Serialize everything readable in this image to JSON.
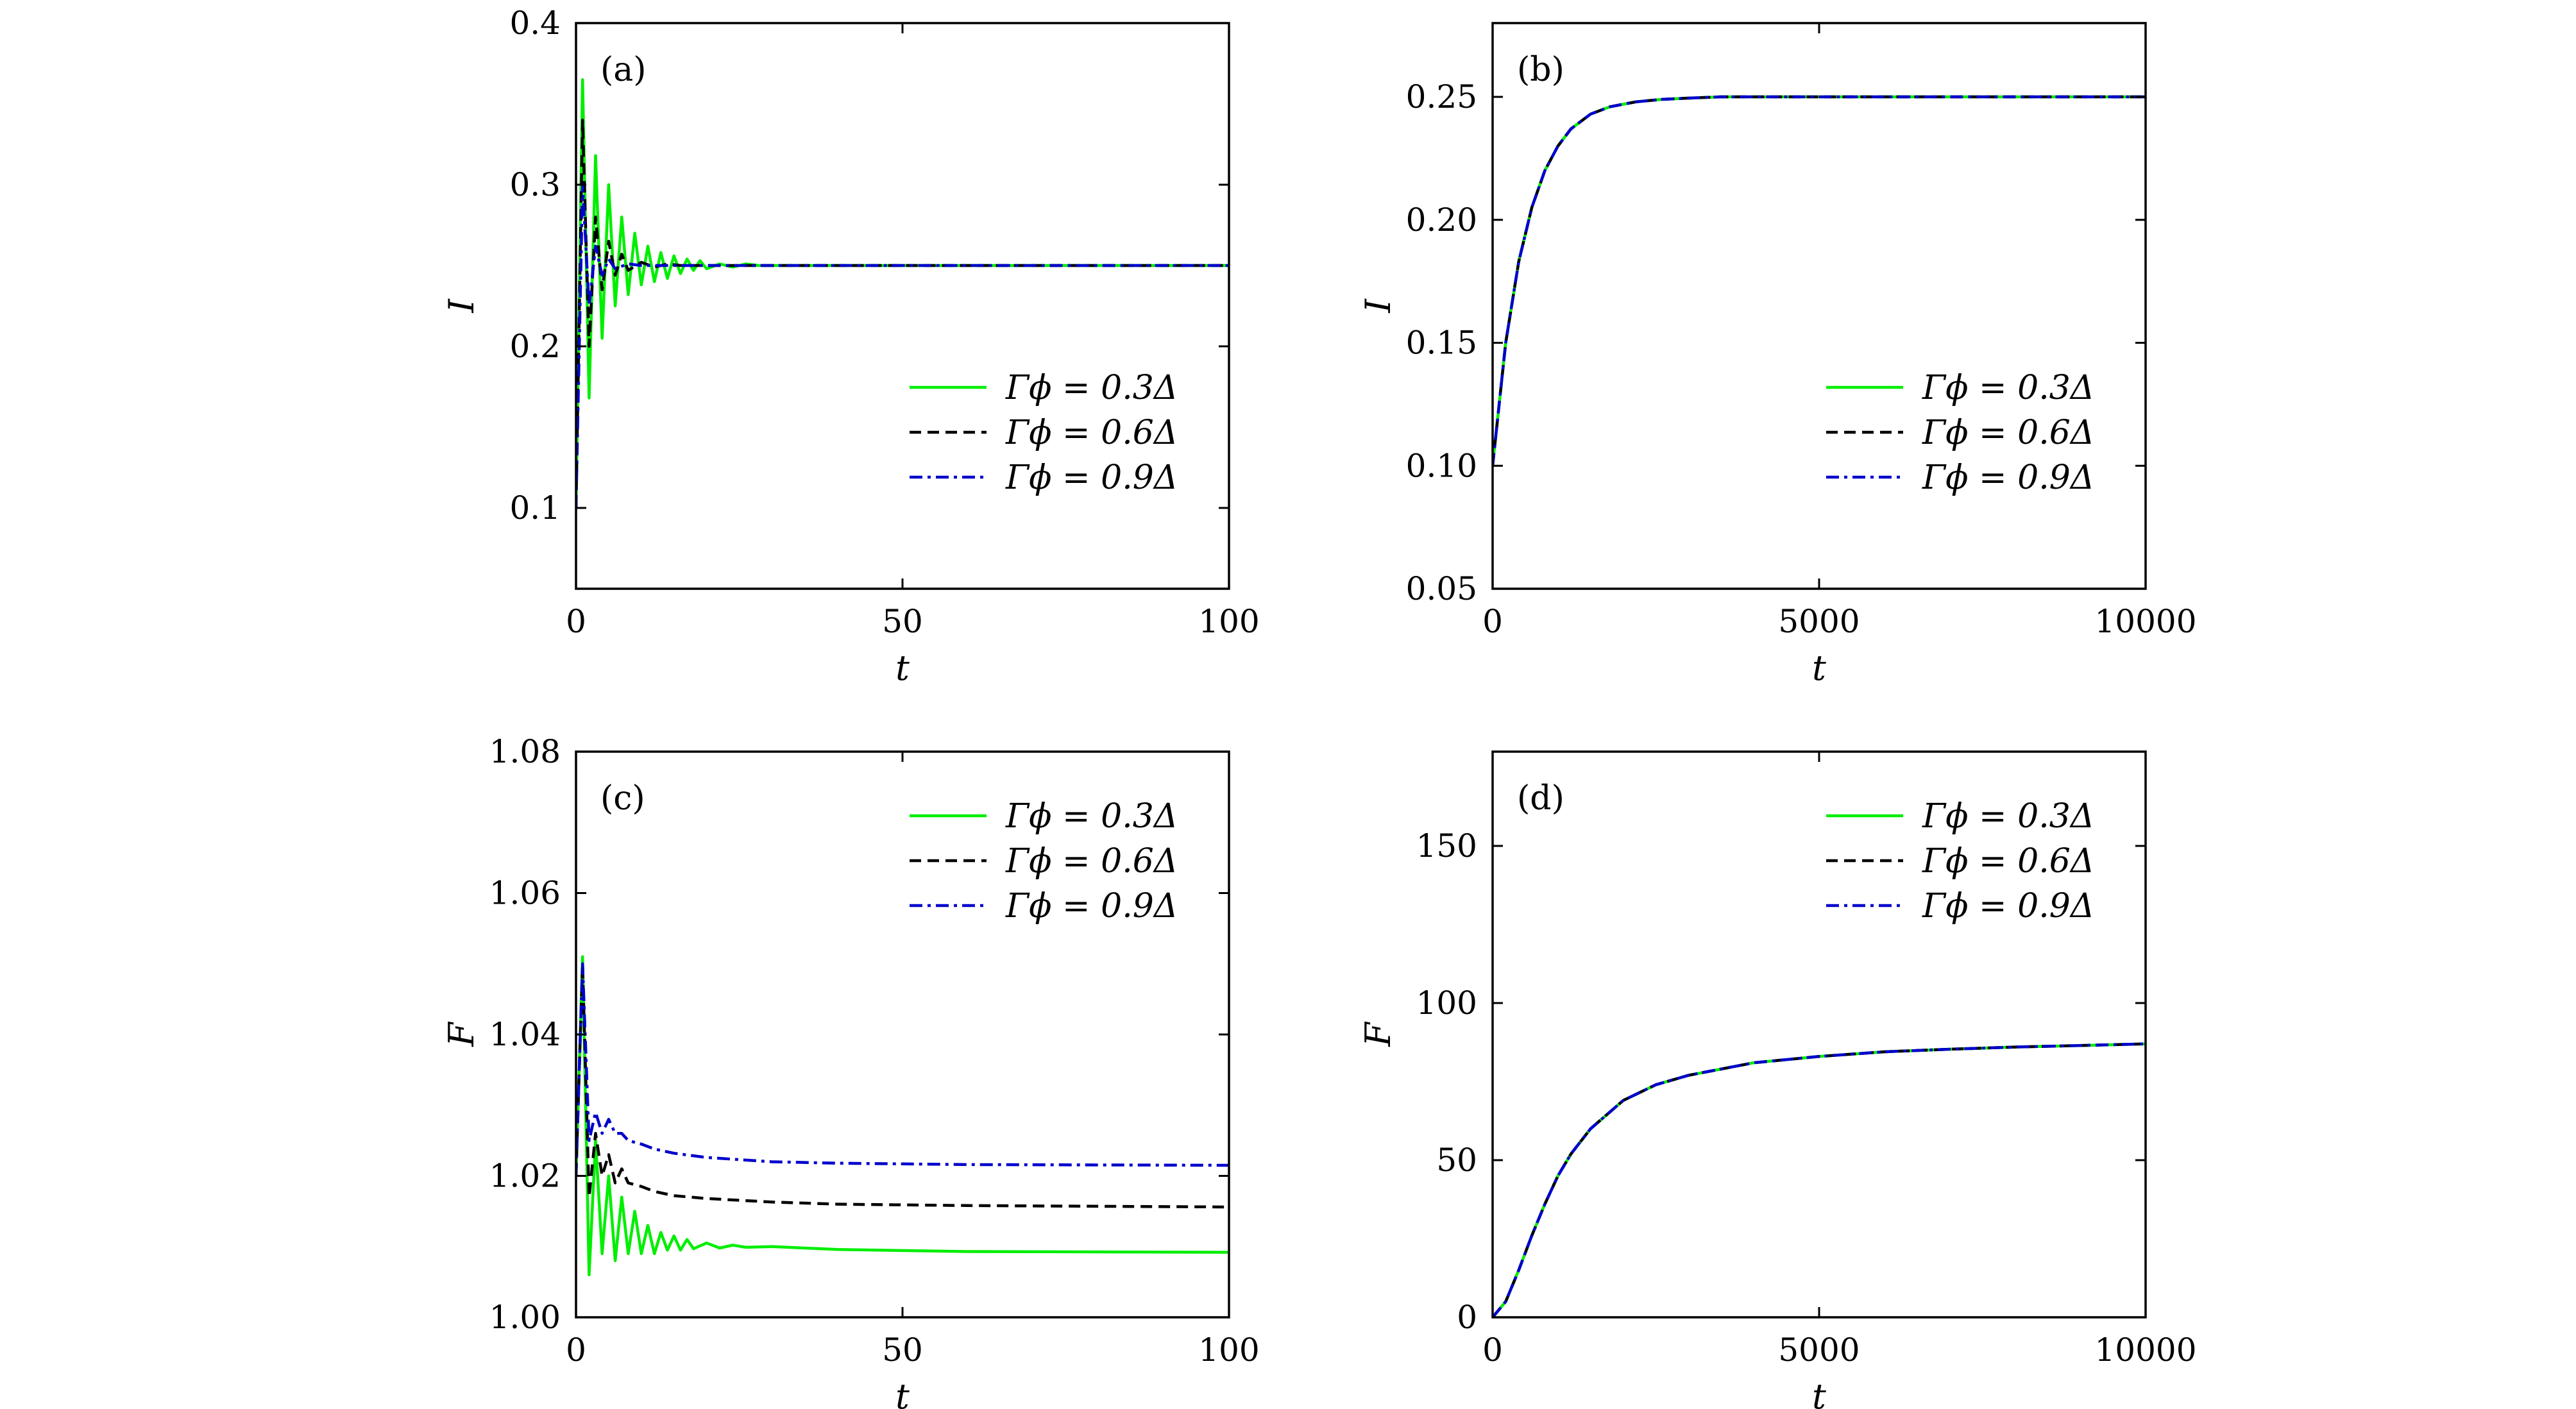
{
  "colors": {
    "green": "#00ee00",
    "black": "#000000",
    "blue": "#0000cc"
  },
  "chart_data": [
    {
      "panel_label": "(a)",
      "type": "line",
      "xlabel": "t",
      "ylabel": "I",
      "xlim": [
        0,
        100
      ],
      "ylim": [
        0.05,
        0.4
      ],
      "xticks": [
        0,
        50,
        100
      ],
      "yticks": [
        0.1,
        0.2,
        0.3,
        0.4
      ],
      "xtick_labels": [
        "0",
        "50",
        "100"
      ],
      "ytick_labels": [
        "0.1",
        "0.2",
        "0.3",
        "0.4"
      ],
      "legend_position": "lower-right",
      "series": [
        {
          "name": "Γϕ = 0.3Δ",
          "style": "solid",
          "color": "#00ee00",
          "x": [
            0,
            1,
            2,
            3,
            4,
            5,
            6,
            7,
            8,
            9,
            10,
            11,
            12,
            13,
            14,
            15,
            16,
            17,
            18,
            19,
            20,
            22,
            24,
            26,
            28,
            30,
            40,
            100
          ],
          "y": [
            0.1,
            0.365,
            0.168,
            0.318,
            0.205,
            0.3,
            0.225,
            0.28,
            0.232,
            0.27,
            0.238,
            0.262,
            0.24,
            0.258,
            0.242,
            0.256,
            0.245,
            0.254,
            0.247,
            0.253,
            0.248,
            0.251,
            0.249,
            0.251,
            0.25,
            0.25,
            0.25,
            0.25
          ]
        },
        {
          "name": "Γϕ = 0.6Δ",
          "style": "dashed",
          "color": "#000000",
          "x": [
            0,
            1,
            2,
            3,
            4,
            5,
            6,
            7,
            8,
            10,
            12,
            14,
            16,
            20,
            30,
            100
          ],
          "y": [
            0.1,
            0.34,
            0.2,
            0.28,
            0.235,
            0.265,
            0.244,
            0.257,
            0.247,
            0.252,
            0.249,
            0.251,
            0.25,
            0.25,
            0.25,
            0.25
          ]
        },
        {
          "name": "Γϕ = 0.9Δ",
          "style": "dashdot",
          "color": "#0000cc",
          "x": [
            0,
            1,
            2,
            3,
            4,
            5,
            6,
            8,
            10,
            15,
            100
          ],
          "y": [
            0.1,
            0.3,
            0.225,
            0.262,
            0.244,
            0.254,
            0.248,
            0.251,
            0.25,
            0.25,
            0.25
          ]
        }
      ]
    },
    {
      "panel_label": "(b)",
      "type": "line",
      "xlabel": "t",
      "ylabel": "I",
      "xlim": [
        0,
        10000
      ],
      "ylim": [
        0.05,
        0.28
      ],
      "xticks": [
        0,
        5000,
        10000
      ],
      "yticks": [
        0.05,
        0.1,
        0.15,
        0.2,
        0.25
      ],
      "xtick_labels": [
        "0",
        "5000",
        "10000"
      ],
      "ytick_labels": [
        "0.05",
        "0.10",
        "0.15",
        "0.20",
        "0.25"
      ],
      "legend_position": "lower-right",
      "series": [
        {
          "name": "Γϕ = 0.3Δ",
          "style": "solid",
          "color": "#00ee00",
          "x": [
            0,
            200,
            400,
            600,
            800,
            1000,
            1200,
            1500,
            1800,
            2200,
            2600,
            3000,
            3500,
            5000,
            10000
          ],
          "y": [
            0.1,
            0.15,
            0.183,
            0.205,
            0.22,
            0.23,
            0.237,
            0.243,
            0.246,
            0.248,
            0.249,
            0.2495,
            0.25,
            0.25,
            0.25
          ]
        },
        {
          "name": "Γϕ = 0.6Δ",
          "style": "dashed",
          "color": "#000000",
          "x": [
            0,
            200,
            400,
            600,
            800,
            1000,
            1200,
            1500,
            1800,
            2200,
            2600,
            3000,
            3500,
            5000,
            10000
          ],
          "y": [
            0.1,
            0.15,
            0.183,
            0.205,
            0.22,
            0.23,
            0.237,
            0.243,
            0.246,
            0.248,
            0.249,
            0.2495,
            0.25,
            0.25,
            0.25
          ]
        },
        {
          "name": "Γϕ = 0.9Δ",
          "style": "dashdot",
          "color": "#0000cc",
          "x": [
            0,
            200,
            400,
            600,
            800,
            1000,
            1200,
            1500,
            1800,
            2200,
            2600,
            3000,
            3500,
            5000,
            10000
          ],
          "y": [
            0.1,
            0.15,
            0.183,
            0.205,
            0.22,
            0.23,
            0.237,
            0.243,
            0.246,
            0.248,
            0.249,
            0.2495,
            0.25,
            0.25,
            0.25
          ]
        }
      ]
    },
    {
      "panel_label": "(c)",
      "type": "line",
      "xlabel": "t",
      "ylabel": "F",
      "xlim": [
        0,
        100
      ],
      "ylim": [
        1.0,
        1.08
      ],
      "xticks": [
        0,
        50,
        100
      ],
      "yticks": [
        1.0,
        1.02,
        1.04,
        1.06,
        1.08
      ],
      "xtick_labels": [
        "0",
        "50",
        "100"
      ],
      "ytick_labels": [
        "1.00",
        "1.02",
        "1.04",
        "1.06",
        "1.08"
      ],
      "legend_position": "upper-right",
      "series": [
        {
          "name": "Γϕ = 0.3Δ",
          "style": "solid",
          "color": "#00ee00",
          "x": [
            0,
            1,
            2,
            3,
            4,
            5,
            6,
            7,
            8,
            9,
            10,
            11,
            12,
            13,
            14,
            15,
            16,
            17,
            18,
            20,
            22,
            24,
            26,
            30,
            40,
            60,
            100
          ],
          "y": [
            1.02,
            1.051,
            1.006,
            1.025,
            1.009,
            1.02,
            1.008,
            1.017,
            1.009,
            1.015,
            1.009,
            1.013,
            1.009,
            1.012,
            1.0095,
            1.0115,
            1.0095,
            1.011,
            1.0097,
            1.0105,
            1.0098,
            1.0102,
            1.0099,
            1.01,
            1.0096,
            1.0093,
            1.0092
          ]
        },
        {
          "name": "Γϕ = 0.6Δ",
          "style": "dashed",
          "color": "#000000",
          "x": [
            0,
            1,
            2,
            3,
            4,
            5,
            6,
            7,
            8,
            10,
            12,
            15,
            20,
            30,
            40,
            60,
            100
          ],
          "y": [
            1.02,
            1.05,
            1.017,
            1.026,
            1.02,
            1.023,
            1.019,
            1.021,
            1.019,
            1.0185,
            1.0178,
            1.0172,
            1.0168,
            1.0163,
            1.016,
            1.0158,
            1.0156
          ]
        },
        {
          "name": "Γϕ = 0.9Δ",
          "style": "dashdot",
          "color": "#0000cc",
          "x": [
            0,
            1,
            2,
            3,
            4,
            5,
            6,
            7,
            8,
            10,
            12,
            15,
            20,
            30,
            40,
            60,
            100
          ],
          "y": [
            1.02,
            1.05,
            1.025,
            1.029,
            1.026,
            1.028,
            1.026,
            1.026,
            1.025,
            1.0245,
            1.0238,
            1.0232,
            1.0226,
            1.022,
            1.0218,
            1.0216,
            1.0215
          ]
        }
      ]
    },
    {
      "panel_label": "(d)",
      "type": "line",
      "xlabel": "t",
      "ylabel": "F",
      "xlim": [
        0,
        10000
      ],
      "ylim": [
        0,
        180
      ],
      "xticks": [
        0,
        5000,
        10000
      ],
      "yticks": [
        0,
        50,
        100,
        150
      ],
      "xtick_labels": [
        "0",
        "5000",
        "10000"
      ],
      "ytick_labels": [
        "0",
        "50",
        "100",
        "150"
      ],
      "legend_position": "upper-right",
      "series": [
        {
          "name": "Γϕ = 0.3Δ",
          "style": "solid",
          "color": "#00ee00",
          "x": [
            0,
            200,
            400,
            600,
            800,
            1000,
            1200,
            1500,
            2000,
            2500,
            3000,
            4000,
            5000,
            6000,
            7000,
            8000,
            9000,
            10000
          ],
          "y": [
            0,
            5,
            15,
            26,
            36,
            45,
            52,
            60,
            69,
            74,
            77,
            81,
            83,
            84.5,
            85.3,
            86,
            86.5,
            87
          ]
        },
        {
          "name": "Γϕ = 0.6Δ",
          "style": "dashed",
          "color": "#000000",
          "x": [
            0,
            200,
            400,
            600,
            800,
            1000,
            1200,
            1500,
            2000,
            2500,
            3000,
            4000,
            5000,
            6000,
            7000,
            8000,
            9000,
            10000
          ],
          "y": [
            0,
            5,
            15,
            26,
            36,
            45,
            52,
            60,
            69,
            74,
            77,
            81,
            83,
            84.5,
            85.3,
            86,
            86.5,
            87
          ]
        },
        {
          "name": "Γϕ = 0.9Δ",
          "style": "dashdot",
          "color": "#0000cc",
          "x": [
            0,
            200,
            400,
            600,
            800,
            1000,
            1200,
            1500,
            2000,
            2500,
            3000,
            4000,
            5000,
            6000,
            7000,
            8000,
            9000,
            10000
          ],
          "y": [
            0,
            5,
            15,
            26,
            36,
            45,
            52,
            60,
            69,
            74,
            77,
            81,
            83,
            84.5,
            85.3,
            86,
            86.5,
            87
          ]
        }
      ]
    }
  ]
}
